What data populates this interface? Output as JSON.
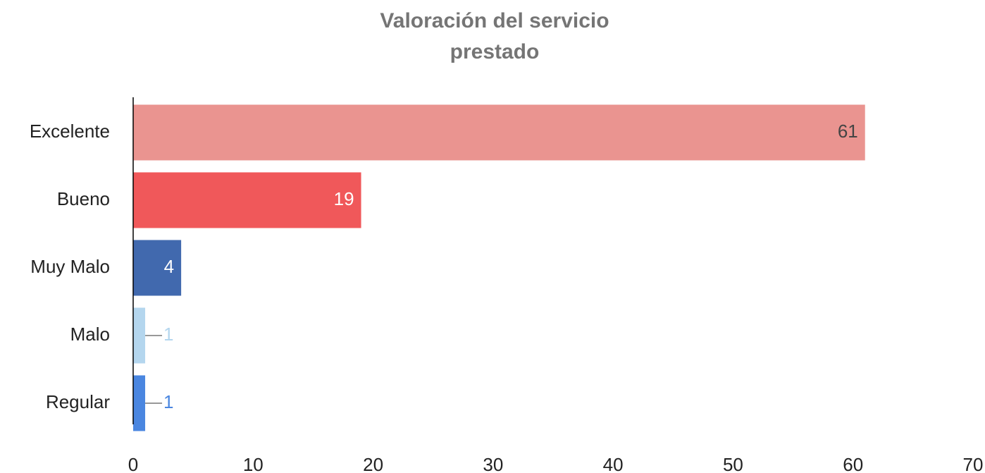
{
  "chart_data": {
    "type": "bar",
    "orientation": "horizontal",
    "title": "Valoración del servicio prestado",
    "categories": [
      "Excelente",
      "Bueno",
      "Muy Malo",
      "Malo",
      "Regular"
    ],
    "values": [
      61,
      19,
      4,
      1,
      1
    ],
    "colors": [
      "#ea9490",
      "#f0585a",
      "#4169ae",
      "#b4d6ee",
      "#4a86e0"
    ],
    "xlim": [
      0,
      70
    ],
    "xticks": [
      0,
      10,
      20,
      30,
      40,
      50,
      60,
      70
    ],
    "grid": false
  }
}
